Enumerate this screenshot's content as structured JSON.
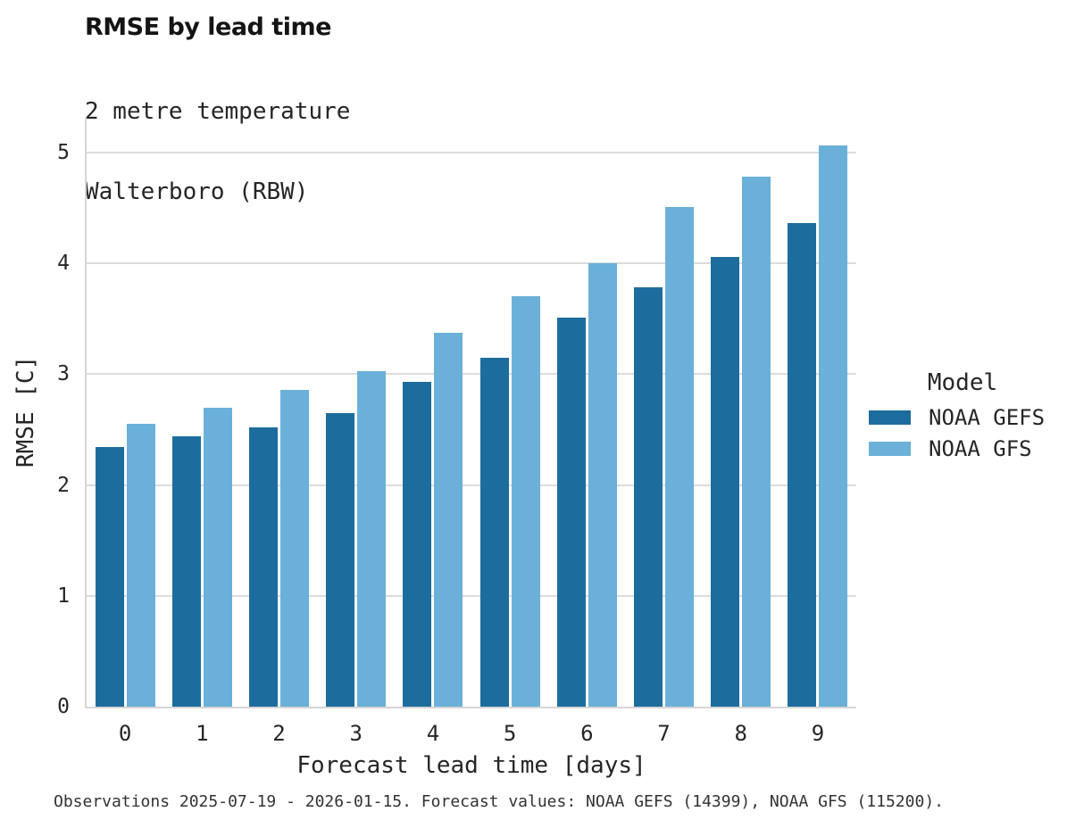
{
  "header": {
    "title": "RMSE by lead time",
    "subtitle_line1": "2 metre temperature",
    "subtitle_line2": "Walterboro (RBW)"
  },
  "footer": {
    "caption": "Observations 2025-07-19 - 2026-01-15. Forecast values: NOAA GEFS (14399), NOAA GFS (115200)."
  },
  "colors": {
    "gefs_dark_blue": "#1c6d9d",
    "gfs_light_blue": "#6bb0d8",
    "gridline_gray": "#dcdcdc",
    "text_dark": "#262626"
  },
  "chart_data": {
    "type": "bar",
    "title": "RMSE by lead time",
    "subtitle": [
      "2 metre temperature",
      "Walterboro (RBW)"
    ],
    "xlabel": "Forecast lead time [days]",
    "ylabel": "RMSE [C]",
    "categories": [
      "0",
      "1",
      "2",
      "3",
      "4",
      "5",
      "6",
      "7",
      "8",
      "9"
    ],
    "series": [
      {
        "name": "NOAA GEFS",
        "color": "#1c6d9d",
        "values": [
          2.34,
          2.44,
          2.52,
          2.65,
          2.93,
          3.15,
          3.51,
          3.78,
          4.06,
          4.36
        ]
      },
      {
        "name": "NOAA GFS",
        "color": "#6bb0d8",
        "values": [
          2.55,
          2.7,
          2.86,
          3.03,
          3.37,
          3.7,
          4.0,
          4.51,
          4.78,
          5.06
        ]
      }
    ],
    "ylim": [
      0,
      5.32
    ],
    "yticks": [
      0,
      1,
      2,
      3,
      4,
      5
    ],
    "grid": "horizontal",
    "legend_title": "Model",
    "legend_position": "right"
  }
}
